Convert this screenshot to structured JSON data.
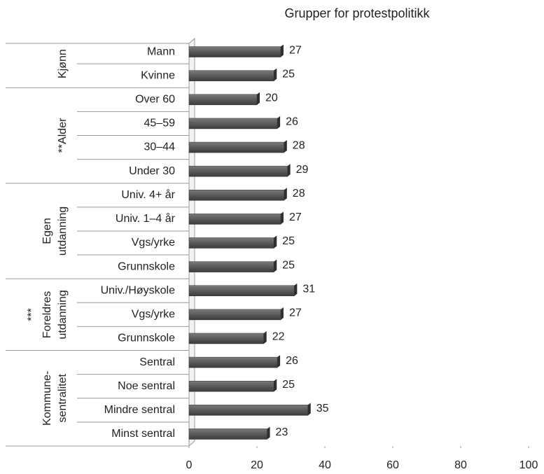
{
  "chart_data": {
    "type": "bar",
    "orientation": "horizontal",
    "title": "Grupper for protestpolitikk",
    "color": "#5a5a5a",
    "groups": [
      {
        "label": [
          "Kjønn"
        ],
        "categories": [
          "Mann",
          "Kvinne"
        ],
        "values": [
          27,
          25
        ]
      },
      {
        "label": [
          "**Alder"
        ],
        "categories": [
          "Over 60",
          "45–59",
          "30–44",
          "Under 30"
        ],
        "values": [
          20,
          26,
          28,
          29
        ]
      },
      {
        "label": [
          "Egen",
          "utdanning"
        ],
        "categories": [
          "Univ. 4+ år",
          "Univ. 1–4 år",
          "Vgs/yrke",
          "Grunnskole"
        ],
        "values": [
          28,
          27,
          25,
          25
        ]
      },
      {
        "label": [
          "***",
          "Foreldres",
          "utdanning"
        ],
        "categories": [
          "Univ./Høyskole",
          "Vgs/yrke",
          "Grunnskole"
        ],
        "values": [
          31,
          27,
          22
        ]
      },
      {
        "label": [
          "Kommune-",
          "sentralitet"
        ],
        "categories": [
          "Sentral",
          "Noe sentral",
          "Mindre sentral",
          "Minst sentral"
        ],
        "values": [
          26,
          25,
          35,
          23
        ]
      }
    ],
    "xlim": [
      0,
      100
    ],
    "xticks": [
      0,
      20,
      40,
      60,
      80,
      100
    ],
    "grid": false
  }
}
